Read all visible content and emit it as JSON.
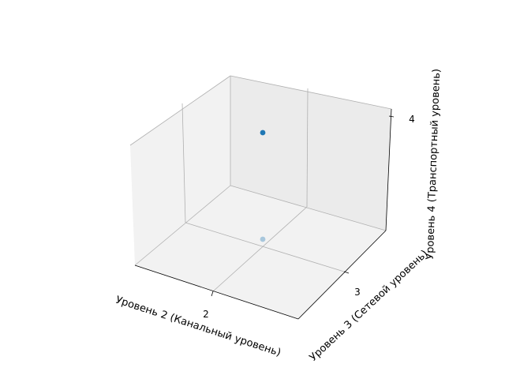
{
  "chart_data": {
    "type": "scatter",
    "projection": "3d",
    "xlabel": "Уровень 2 (Канальный уровень)",
    "ylabel": "Уровень 3 (Сетевой уровень)",
    "zlabel": "Уровень 4 (Транспортный уровень)",
    "xticks": [
      "2"
    ],
    "yticks": [
      "3"
    ],
    "zticks": [
      "4"
    ],
    "points": [
      {
        "x": 2,
        "y": 3,
        "z": 4
      }
    ],
    "shadow_point_alpha": 0.35,
    "grid": true,
    "colors": {
      "marker": "#1f77b4",
      "pane_floor": "#f2f2f2",
      "pane_back": "#ebebeb",
      "pane_side": "#f2f2f2",
      "grid": "#b0b0b0",
      "axis": "#000000"
    }
  }
}
